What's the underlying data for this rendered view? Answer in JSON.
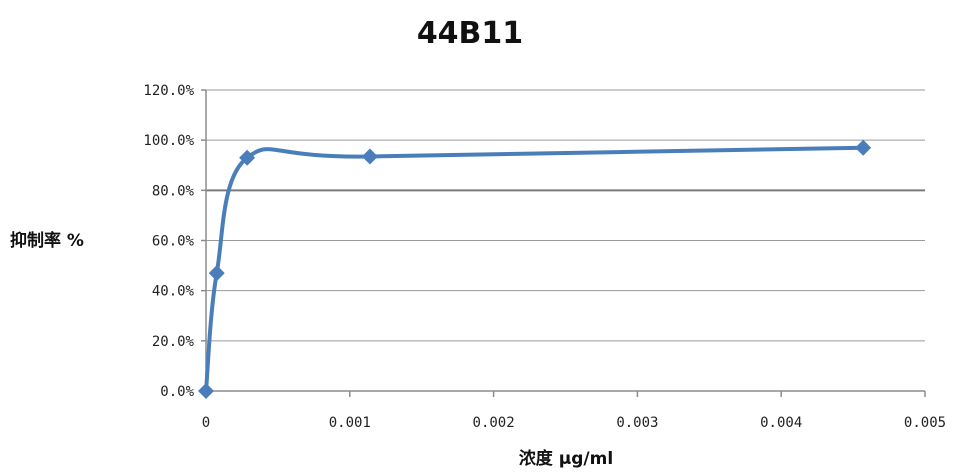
{
  "chart_data": {
    "type": "line",
    "title": "44B11",
    "xlabel": "浓度 μg/ml",
    "ylabel": "抑制率 %",
    "xlim": [
      0,
      0.005
    ],
    "ylim": [
      0,
      1.2
    ],
    "x_ticks": [
      "0",
      "0.001",
      "0.002",
      "0.003",
      "0.004",
      "0.005"
    ],
    "y_ticks": [
      "0.0%",
      "20.0%",
      "40.0%",
      "60.0%",
      "80.0%",
      "100.0%",
      "120.0%"
    ],
    "grid": true,
    "smooth": true,
    "marker": "diamond",
    "series": [
      {
        "x": [
          0,
          7.47e-05,
          0.000286,
          0.00114,
          0.00457
        ],
        "y": [
          0.0,
          0.47,
          0.93,
          0.935,
          0.97
        ],
        "color": "#4a7ebb"
      }
    ]
  }
}
